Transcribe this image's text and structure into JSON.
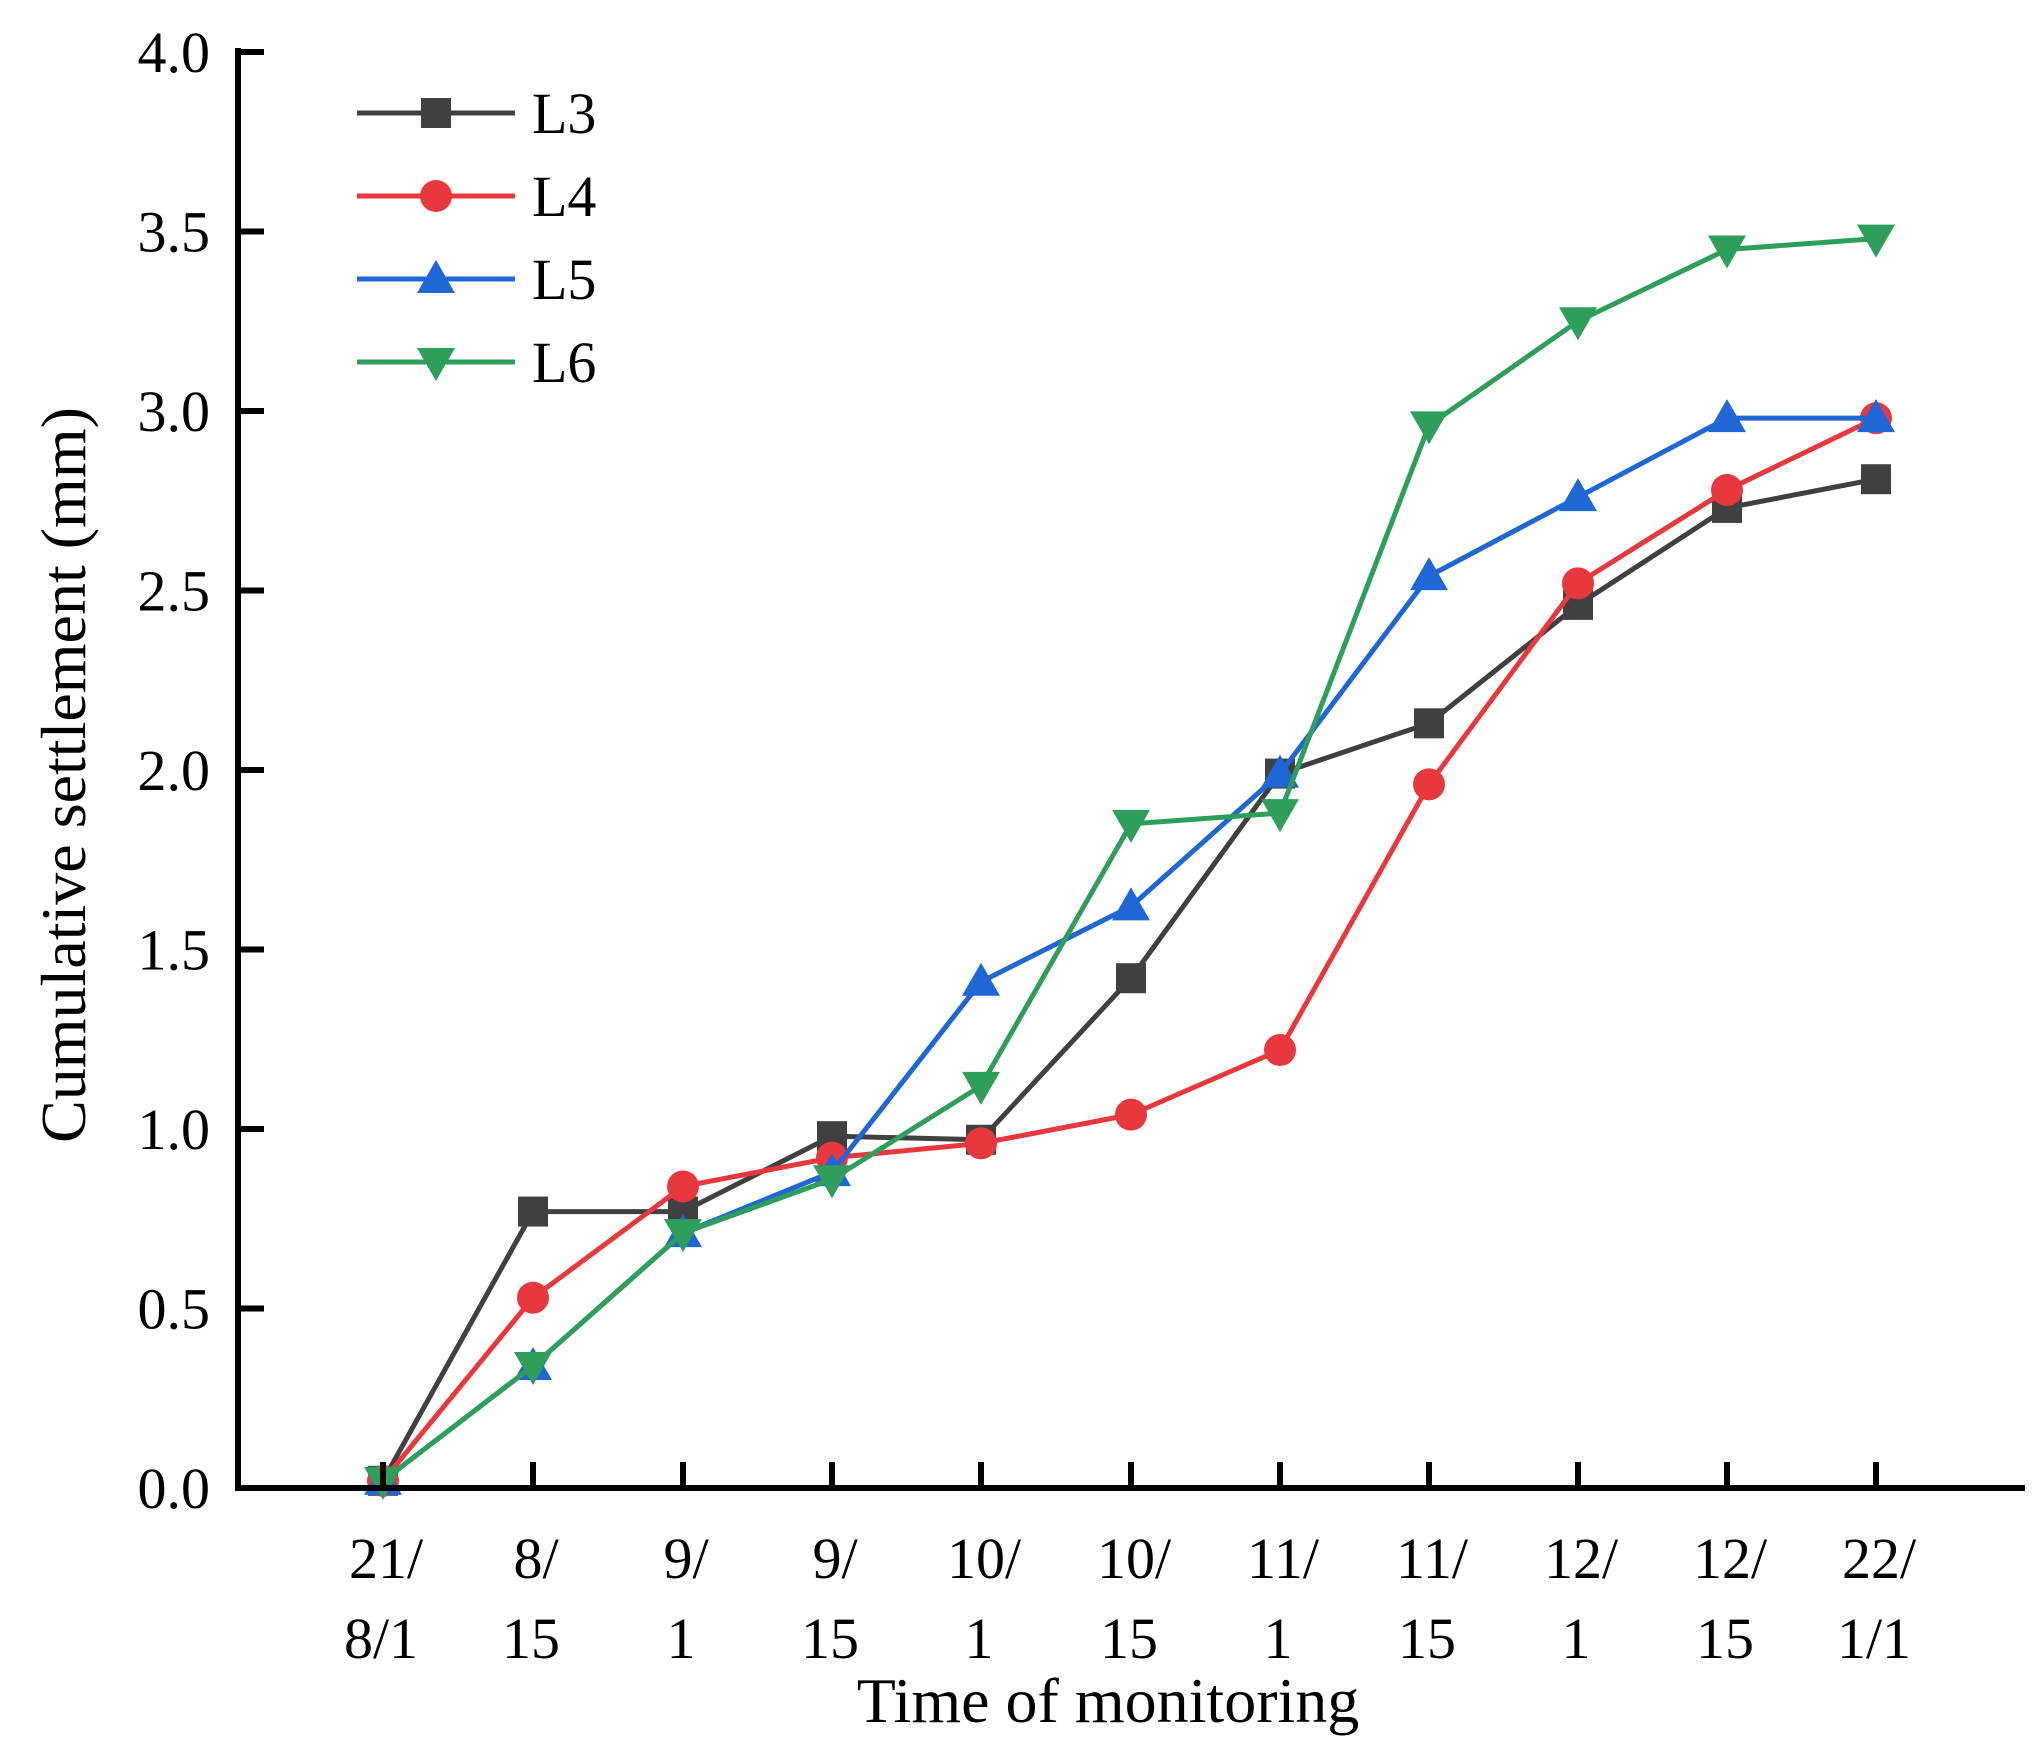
{
  "chart_data": {
    "type": "line",
    "title": "",
    "xlabel": "Time of monitoring",
    "ylabel": "Cumulative settlement (mm)",
    "ylim": [
      0,
      4
    ],
    "yticks": [
      "0.0",
      "0.5",
      "1.0",
      "1.5",
      "2.0",
      "2.5",
      "3.0",
      "3.5",
      "4.0"
    ],
    "categories": [
      [
        "21/",
        "8/1"
      ],
      [
        "8/",
        "15"
      ],
      [
        "9/",
        "1"
      ],
      [
        "9/",
        "15"
      ],
      [
        "10/",
        "1"
      ],
      [
        "10/",
        "15"
      ],
      [
        "11/",
        "1"
      ],
      [
        "11/",
        "15"
      ],
      [
        "12/",
        "1"
      ],
      [
        "12/",
        "15"
      ],
      [
        "22/",
        "1/1"
      ]
    ],
    "legend_position": "top-left",
    "series": [
      {
        "name": "L3",
        "color": "#404040",
        "marker": "square",
        "values": [
          0.02,
          0.77,
          0.77,
          0.98,
          0.97,
          1.42,
          1.99,
          2.13,
          2.46,
          2.73,
          2.81
        ]
      },
      {
        "name": "L4",
        "color": "#e8383d",
        "marker": "circle",
        "values": [
          0.02,
          0.53,
          0.84,
          0.92,
          0.96,
          1.04,
          1.22,
          1.96,
          2.52,
          2.78,
          2.98
        ]
      },
      {
        "name": "L5",
        "color": "#1f66d6",
        "marker": "triangle-up",
        "values": [
          0.02,
          0.34,
          0.71,
          0.88,
          1.41,
          1.62,
          1.99,
          2.54,
          2.76,
          2.98,
          2.98
        ]
      },
      {
        "name": "L6",
        "color": "#2e9e5b",
        "marker": "triangle-down",
        "values": [
          0.02,
          0.34,
          0.71,
          0.86,
          1.12,
          1.85,
          1.88,
          2.96,
          3.25,
          3.45,
          3.48
        ]
      }
    ]
  }
}
